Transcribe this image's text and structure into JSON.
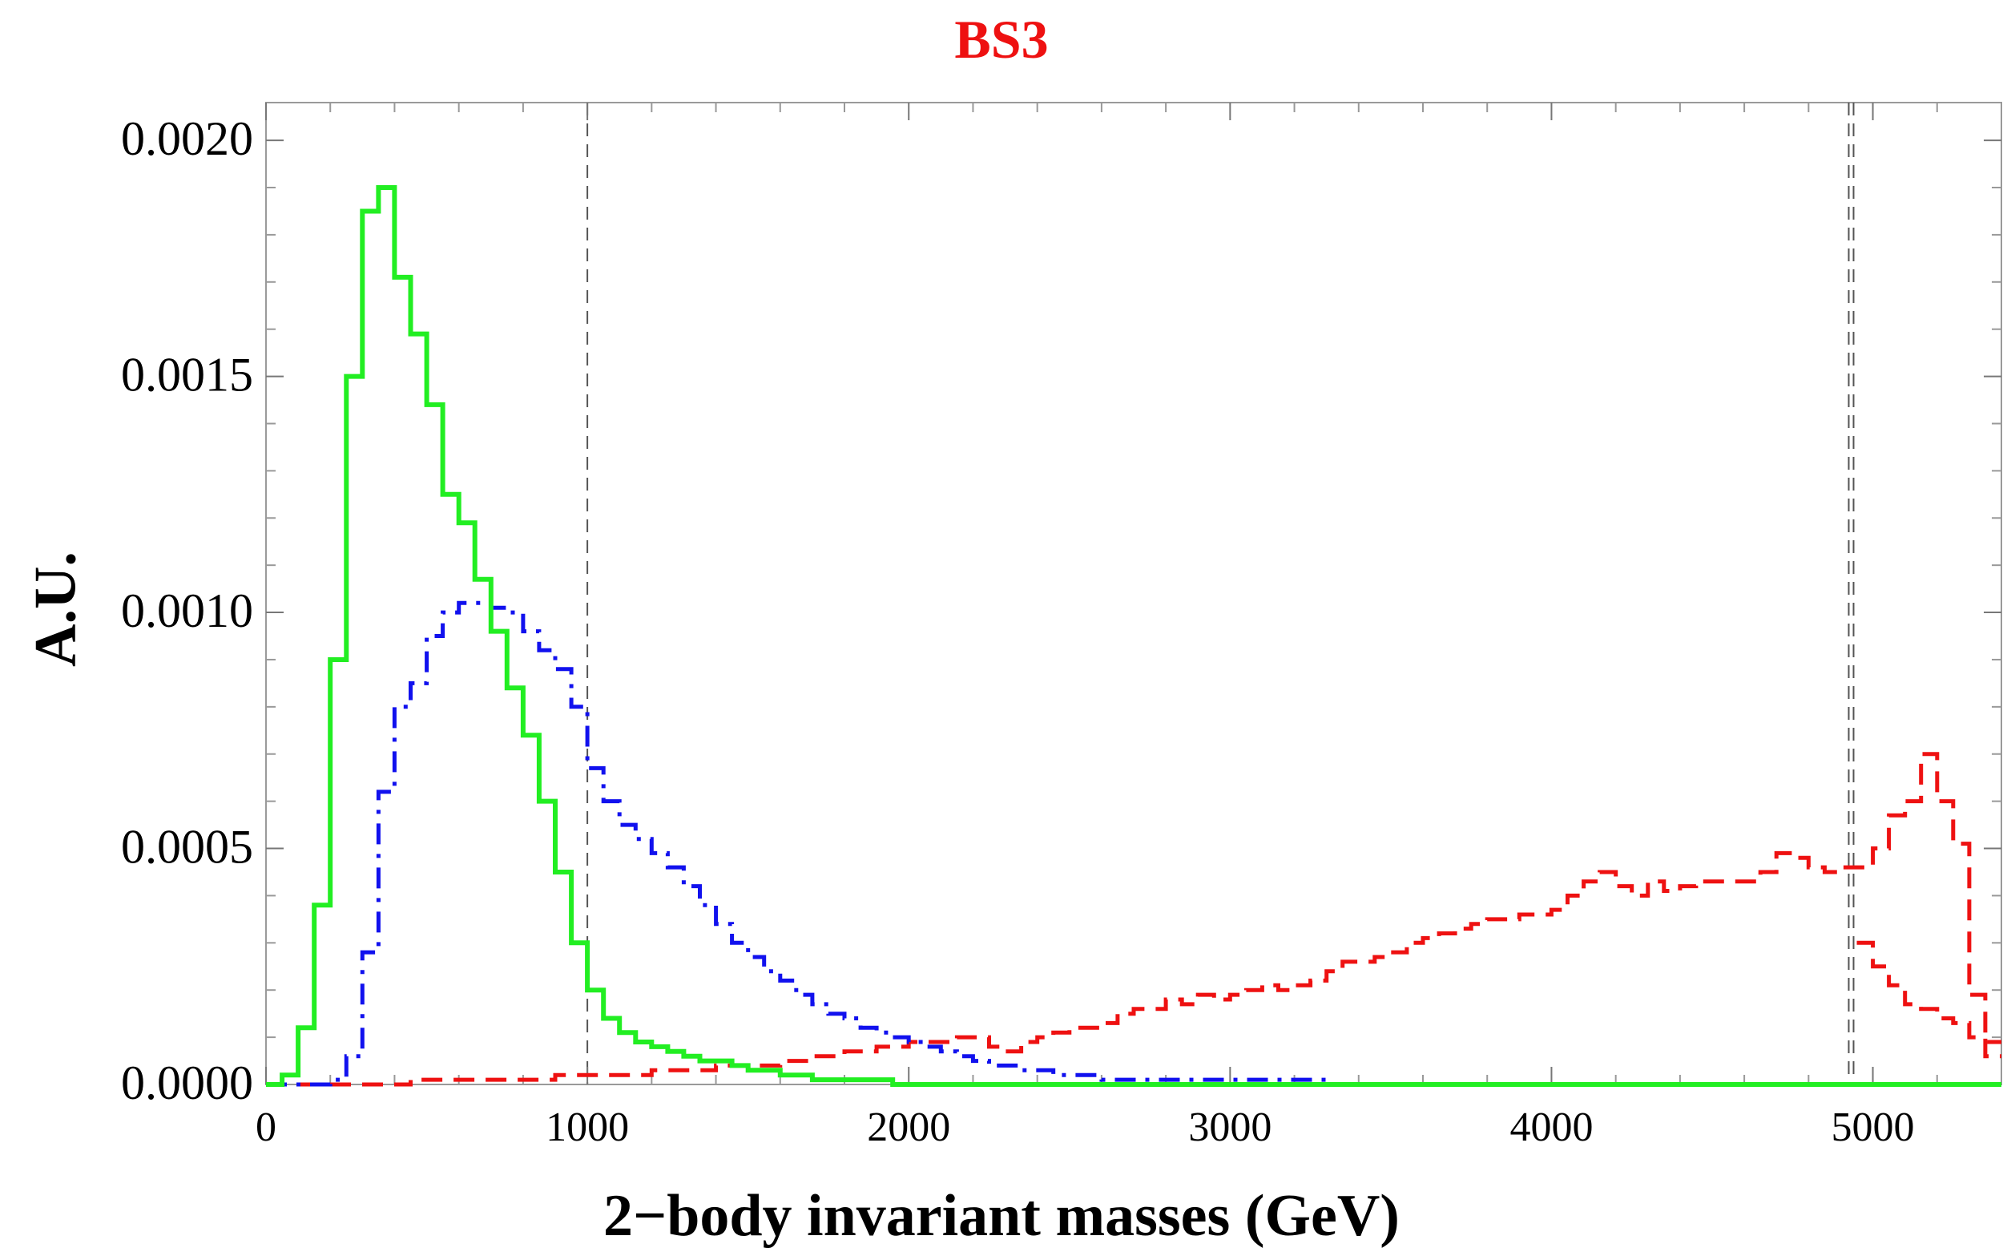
{
  "chart_data": {
    "type": "line",
    "title": "BS3",
    "xlabel": "2−body invariant masses (GeV)",
    "ylabel": "A.U.",
    "xlim": [
      0,
      5400
    ],
    "ylim": [
      0,
      0.00208
    ],
    "xticks": [
      0,
      1000,
      2000,
      3000,
      4000,
      5000
    ],
    "xtick_labels": [
      "0",
      "1000",
      "2000",
      "3000",
      "4000",
      "5000"
    ],
    "yticks": [
      0.0,
      0.0005,
      0.001,
      0.0015,
      0.002
    ],
    "ytick_labels": [
      "0.0000",
      "0.0005",
      "0.0010",
      "0.0015",
      "0.0020"
    ],
    "grid": false,
    "reference_lines": [
      {
        "x": 1000,
        "style": "dashed",
        "color": "#555555"
      },
      {
        "x": 4925,
        "style": "dashed",
        "color": "#555555"
      },
      {
        "x": 4940,
        "style": "dashed",
        "color": "#555555"
      }
    ],
    "bin_width": 50,
    "series": [
      {
        "name": "green",
        "color": "#22ee22",
        "style": "solid",
        "x_start": 0,
        "values": [
          0.0,
          2e-05,
          0.00012,
          0.00038,
          0.0009,
          0.0015,
          0.00185,
          0.0019,
          0.00171,
          0.00159,
          0.00144,
          0.00125,
          0.00119,
          0.00107,
          0.00096,
          0.00084,
          0.00074,
          0.0006,
          0.00045,
          0.0003,
          0.0002,
          0.00014,
          0.00011,
          9e-05,
          8e-05,
          7e-05,
          6e-05,
          5e-05,
          5e-05,
          4e-05,
          3e-05,
          3e-05,
          2e-05,
          2e-05,
          1e-05,
          1e-05,
          1e-05,
          1e-05,
          1e-05,
          0.0,
          0.0,
          0.0,
          0.0,
          0.0,
          0.0,
          0.0,
          0.0,
          0.0,
          0.0,
          0.0,
          0.0,
          0.0,
          0.0,
          0.0,
          0.0,
          0.0,
          0.0,
          0.0,
          0.0,
          0.0,
          0.0,
          0.0,
          0.0,
          0.0,
          0.0,
          0.0,
          0.0,
          0.0,
          0.0,
          0.0,
          0.0,
          0.0,
          0.0,
          0.0,
          0.0,
          0.0,
          0.0,
          0.0,
          0.0,
          0.0,
          0.0,
          0.0,
          0.0,
          0.0,
          0.0,
          0.0,
          0.0,
          0.0,
          0.0,
          0.0,
          0.0,
          0.0,
          0.0,
          0.0,
          0.0,
          0.0,
          0.0,
          0.0,
          0.0,
          0.0,
          0.0,
          0.0,
          0.0,
          0.0,
          0.0,
          0.0,
          0.0,
          0.0
        ]
      },
      {
        "name": "blue",
        "color": "#1111ee",
        "style": "dashdot",
        "x_start": 0,
        "values": [
          0.0,
          0.0,
          0.0,
          0.0,
          1e-05,
          6e-05,
          0.00028,
          0.00062,
          0.0008,
          0.00085,
          0.00095,
          0.001,
          0.00102,
          0.00102,
          0.00101,
          0.001,
          0.00096,
          0.00092,
          0.00088,
          0.0008,
          0.00067,
          0.0006,
          0.00055,
          0.00052,
          0.00049,
          0.00046,
          0.00042,
          0.00038,
          0.00034,
          0.0003,
          0.00027,
          0.00024,
          0.00022,
          0.00019,
          0.00017,
          0.00015,
          0.00014,
          0.00012,
          0.00011,
          0.0001,
          9e-05,
          8e-05,
          7e-05,
          6e-05,
          5e-05,
          4e-05,
          4e-05,
          3e-05,
          3e-05,
          2e-05,
          2e-05,
          2e-05,
          1e-05,
          1e-05,
          1e-05,
          1e-05,
          1e-05,
          1e-05,
          1e-05,
          1e-05,
          1e-05,
          1e-05,
          1e-05,
          1e-05,
          1e-05,
          1e-05,
          0.0,
          0.0,
          0.0,
          0.0,
          0.0,
          0.0,
          0.0,
          0.0,
          0.0,
          0.0,
          0.0,
          0.0,
          0.0,
          0.0,
          0.0,
          0.0,
          0.0,
          0.0,
          0.0,
          0.0,
          0.0,
          0.0,
          0.0,
          0.0,
          0.0,
          0.0,
          0.0,
          0.0,
          0.0,
          0.0,
          0.0,
          0.0,
          0.0,
          0.0,
          0.0,
          0.0,
          0.0,
          0.0,
          0.0,
          0.0,
          0.0,
          0.0
        ]
      },
      {
        "name": "red",
        "color": "#ee1111",
        "style": "dashed",
        "x_start": 0,
        "values": [
          0.0,
          0.0,
          0.0,
          0.0,
          0.0,
          0.0,
          0.0,
          0.0,
          0.0,
          1e-05,
          1e-05,
          1e-05,
          1e-05,
          1e-05,
          1e-05,
          1e-05,
          1e-05,
          1e-05,
          2e-05,
          2e-05,
          2e-05,
          2e-05,
          2e-05,
          2e-05,
          3e-05,
          3e-05,
          3e-05,
          3e-05,
          4e-05,
          4e-05,
          4e-05,
          4e-05,
          5e-05,
          5e-05,
          6e-05,
          6e-05,
          7e-05,
          7e-05,
          8e-05,
          8e-05,
          9e-05,
          9e-05,
          9e-05,
          0.0001,
          0.0001,
          8e-05,
          7e-05,
          9e-05,
          0.0001,
          0.00011,
          0.00012,
          0.00012,
          0.00013,
          0.00015,
          0.00016,
          0.00016,
          0.00018,
          0.00017,
          0.00019,
          0.00018,
          0.00019,
          0.0002,
          0.00021,
          0.0002,
          0.00021,
          0.00022,
          0.00024,
          0.00026,
          0.00026,
          0.00027,
          0.00028,
          0.0003,
          0.00031,
          0.00032,
          0.00033,
          0.00034,
          0.00035,
          0.00035,
          0.00036,
          0.00036,
          0.00037,
          0.0004,
          0.00043,
          0.00045,
          0.00042,
          0.0004,
          0.00043,
          0.00041,
          0.00042,
          0.00043,
          0.00043,
          0.00043,
          0.00043,
          0.00045,
          0.00049,
          0.00048,
          0.00046,
          0.00045,
          0.00046,
          0.00046,
          0.0005,
          0.00057,
          0.0006,
          0.0007,
          0.0006,
          0.00051,
          0.00019,
          9e-05
        ]
      },
      {
        "name": "red-tail",
        "color": "#ee1111",
        "style": "dashed",
        "x_start": 4950,
        "values": [
          0.0003,
          0.00025,
          0.00021,
          0.00017,
          0.00016,
          0.00014,
          0.00013,
          0.0001,
          6e-05
        ]
      }
    ]
  }
}
